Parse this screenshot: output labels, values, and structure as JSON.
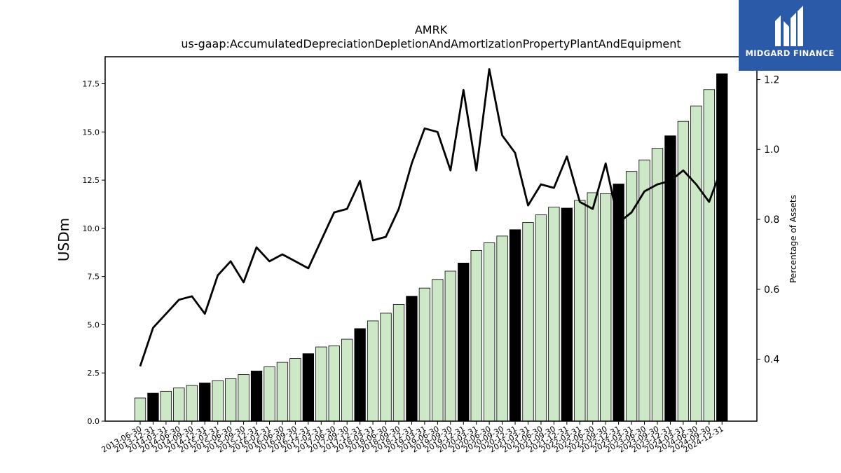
{
  "brand": {
    "name": "MIDGARD FINANCE",
    "color": "#2b5aa8"
  },
  "chart_data": {
    "type": "bar",
    "title": "AMRK",
    "subtitle": "us-gaap:AccumulatedDepreciationDepletionAndAmortizationPropertyPlantAndEquipment",
    "ylabel": "USDm",
    "y2label": "Percentage of Assets",
    "ylim": [
      0,
      18.9
    ],
    "y2lim": [
      0.223,
      1.265
    ],
    "yticks": [
      "0.0",
      "2.5",
      "5.0",
      "7.5",
      "10.0",
      "12.5",
      "15.0",
      "17.5"
    ],
    "y2ticks": [
      "0.4",
      "0.6",
      "0.8",
      "1.0",
      "1.2"
    ],
    "grid": false,
    "colors": {
      "quarter_bar": "#cde8c6",
      "fiscal_year_bar": "#000000",
      "bar_edge": "#000000",
      "line": "#000000"
    },
    "categories": [
      "2013-06-30",
      "2013-12-31",
      "2014-03-31",
      "2014-06-30",
      "2014-09-30",
      "2014-12-31",
      "2015-03-31",
      "2015-06-30",
      "2015-09-30",
      "2015-12-31",
      "2016-03-31",
      "2016-06-30",
      "2016-09-30",
      "2016-12-31",
      "2017-03-31",
      "2017-06-30",
      "2017-09-30",
      "2017-12-31",
      "2018-03-31",
      "2018-06-30",
      "2018-09-30",
      "2018-12-31",
      "2019-03-31",
      "2019-06-30",
      "2019-09-30",
      "2019-12-31",
      "2020-03-31",
      "2020-06-30",
      "2020-09-30",
      "2020-12-31",
      "2021-03-31",
      "2021-06-30",
      "2021-09-30",
      "2021-12-31",
      "2022-03-31",
      "2022-06-30",
      "2022-09-30",
      "2022-12-31",
      "2023-03-31",
      "2023-06-30",
      "2023-09-30",
      "2023-12-31",
      "2024-03-31",
      "2024-06-30",
      "2024-09-30",
      "2024-12-31"
    ],
    "fiscal_year_end": [
      false,
      true,
      false,
      false,
      false,
      true,
      false,
      false,
      false,
      true,
      false,
      false,
      false,
      true,
      false,
      false,
      false,
      true,
      false,
      false,
      false,
      true,
      false,
      false,
      false,
      true,
      false,
      false,
      false,
      true,
      false,
      false,
      false,
      true,
      false,
      false,
      false,
      true,
      false,
      false,
      false,
      true,
      false,
      false,
      false,
      true
    ],
    "series": [
      {
        "name": "",
        "type": "bar",
        "axis": "left",
        "values": [
          1.2,
          1.45,
          1.55,
          1.72,
          1.85,
          1.98,
          2.1,
          2.2,
          2.42,
          2.6,
          2.82,
          3.05,
          3.25,
          3.5,
          3.85,
          3.9,
          4.25,
          4.8,
          5.2,
          5.6,
          6.05,
          6.48,
          6.9,
          7.35,
          7.78,
          8.2,
          8.85,
          9.25,
          9.6,
          9.93,
          10.3,
          10.7,
          11.1,
          11.05,
          11.45,
          11.85,
          11.8,
          12.3,
          12.95,
          13.55,
          14.15,
          14.8,
          15.55,
          16.35,
          17.2,
          18.02
        ]
      },
      {
        "name": "",
        "type": "line",
        "axis": "right",
        "values": [
          0.38,
          0.49,
          0.53,
          0.57,
          0.58,
          0.53,
          0.64,
          0.68,
          0.62,
          0.72,
          0.68,
          0.7,
          0.68,
          0.66,
          0.74,
          0.82,
          0.83,
          0.91,
          0.74,
          0.75,
          0.83,
          0.96,
          1.06,
          1.05,
          0.94,
          1.17,
          0.94,
          1.23,
          1.04,
          0.99,
          0.84,
          0.9,
          0.89,
          0.98,
          0.85,
          0.83,
          0.96,
          0.79,
          0.82,
          0.88,
          0.9,
          0.91,
          0.94,
          0.9,
          0.85,
          0.95
        ]
      }
    ]
  }
}
